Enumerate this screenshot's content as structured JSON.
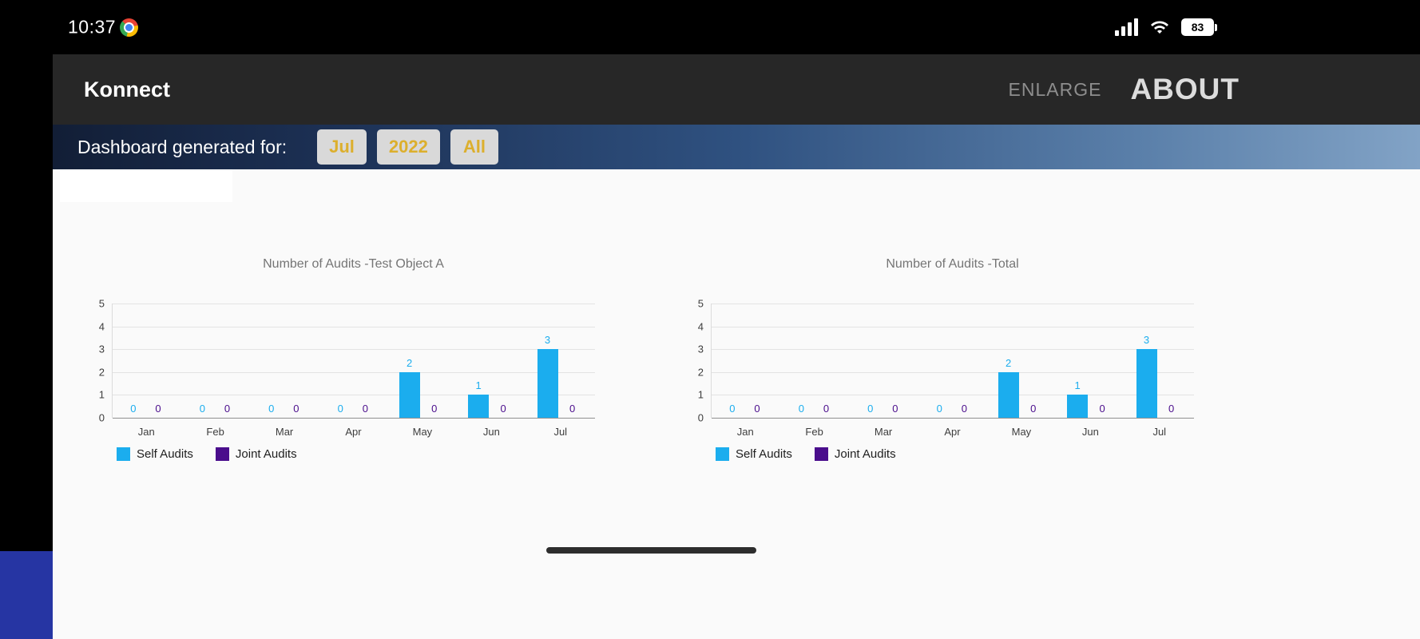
{
  "status_bar": {
    "time": "10:37",
    "battery_percent": "83"
  },
  "app_bar": {
    "title": "Konnect",
    "enlarge_label": "ENLARGE",
    "about_label": "ABOUT"
  },
  "filter_bar": {
    "label": "Dashboard generated for:",
    "filters": [
      "Jul",
      "2022",
      "All"
    ]
  },
  "colors": {
    "self_audits": "#1badee",
    "joint_audits": "#4a0d8c",
    "accent_gold": "#dcaf2d",
    "bottom_left_accent": "#2635a3"
  },
  "chart_data": [
    {
      "type": "bar",
      "title": "Number of Audits -Test Object A",
      "categories": [
        "Jan",
        "Feb",
        "Mar",
        "Apr",
        "May",
        "Jun",
        "Jul"
      ],
      "series": [
        {
          "name": "Self Audits",
          "color": "#1badee",
          "values": [
            0,
            0,
            0,
            0,
            2,
            1,
            3
          ]
        },
        {
          "name": "Joint Audits",
          "color": "#4a0d8c",
          "values": [
            0,
            0,
            0,
            0,
            0,
            0,
            0
          ]
        }
      ],
      "ylabel": "",
      "xlabel": "",
      "ylim": [
        0,
        5
      ],
      "yticks": [
        0,
        1,
        2,
        3,
        4,
        5
      ],
      "grid": true,
      "legend_position": "bottom"
    },
    {
      "type": "bar",
      "title": "Number of Audits -Total",
      "categories": [
        "Jan",
        "Feb",
        "Mar",
        "Apr",
        "May",
        "Jun",
        "Jul"
      ],
      "series": [
        {
          "name": "Self Audits",
          "color": "#1badee",
          "values": [
            0,
            0,
            0,
            0,
            2,
            1,
            3
          ]
        },
        {
          "name": "Joint Audits",
          "color": "#4a0d8c",
          "values": [
            0,
            0,
            0,
            0,
            0,
            0,
            0
          ]
        }
      ],
      "ylabel": "",
      "xlabel": "",
      "ylim": [
        0,
        5
      ],
      "yticks": [
        0,
        1,
        2,
        3,
        4,
        5
      ],
      "grid": true,
      "legend_position": "bottom"
    }
  ]
}
